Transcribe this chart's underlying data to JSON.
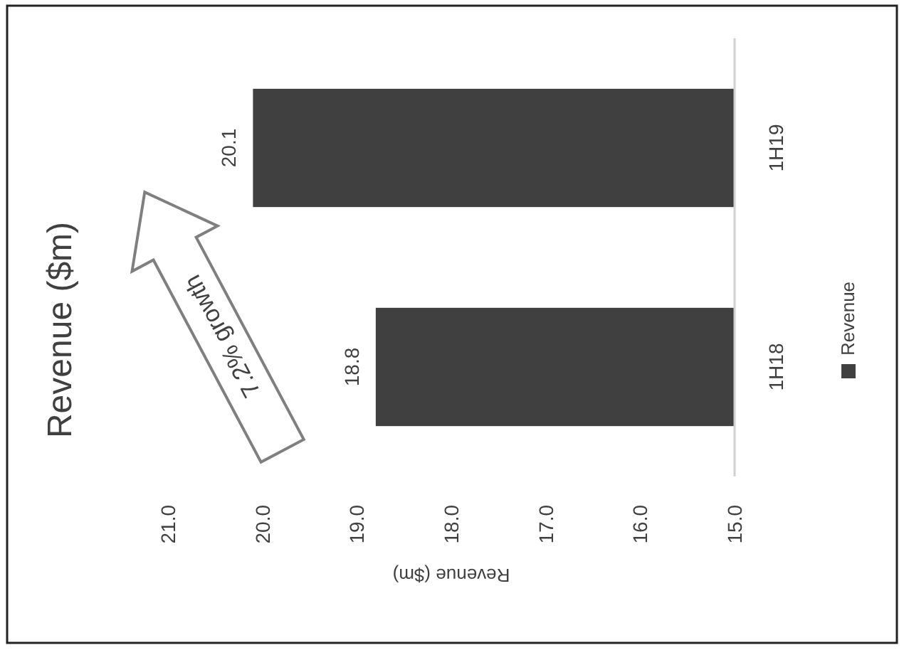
{
  "chart_data": {
    "type": "bar",
    "orientation": "horizontal",
    "title": "Revenue ($m)",
    "xlabel": "Revenue ($m)",
    "categories": [
      "1H19",
      "1H18"
    ],
    "series": [
      {
        "name": "Revenue",
        "color": "#404040",
        "values": [
          20.1,
          18.8
        ]
      }
    ],
    "xlim": [
      21,
      15
    ],
    "xticks": [
      {
        "value": 21,
        "label": "21.0"
      },
      {
        "value": 20,
        "label": "20.0"
      },
      {
        "value": 19,
        "label": "19.0"
      },
      {
        "value": 18,
        "label": "18.0"
      },
      {
        "value": 17,
        "label": "17.0"
      },
      {
        "value": 16,
        "label": "16.0"
      },
      {
        "value": 15,
        "label": "15.0"
      }
    ],
    "data_labels": true,
    "legend": "right",
    "annotations": [
      "7.2% growth"
    ]
  }
}
